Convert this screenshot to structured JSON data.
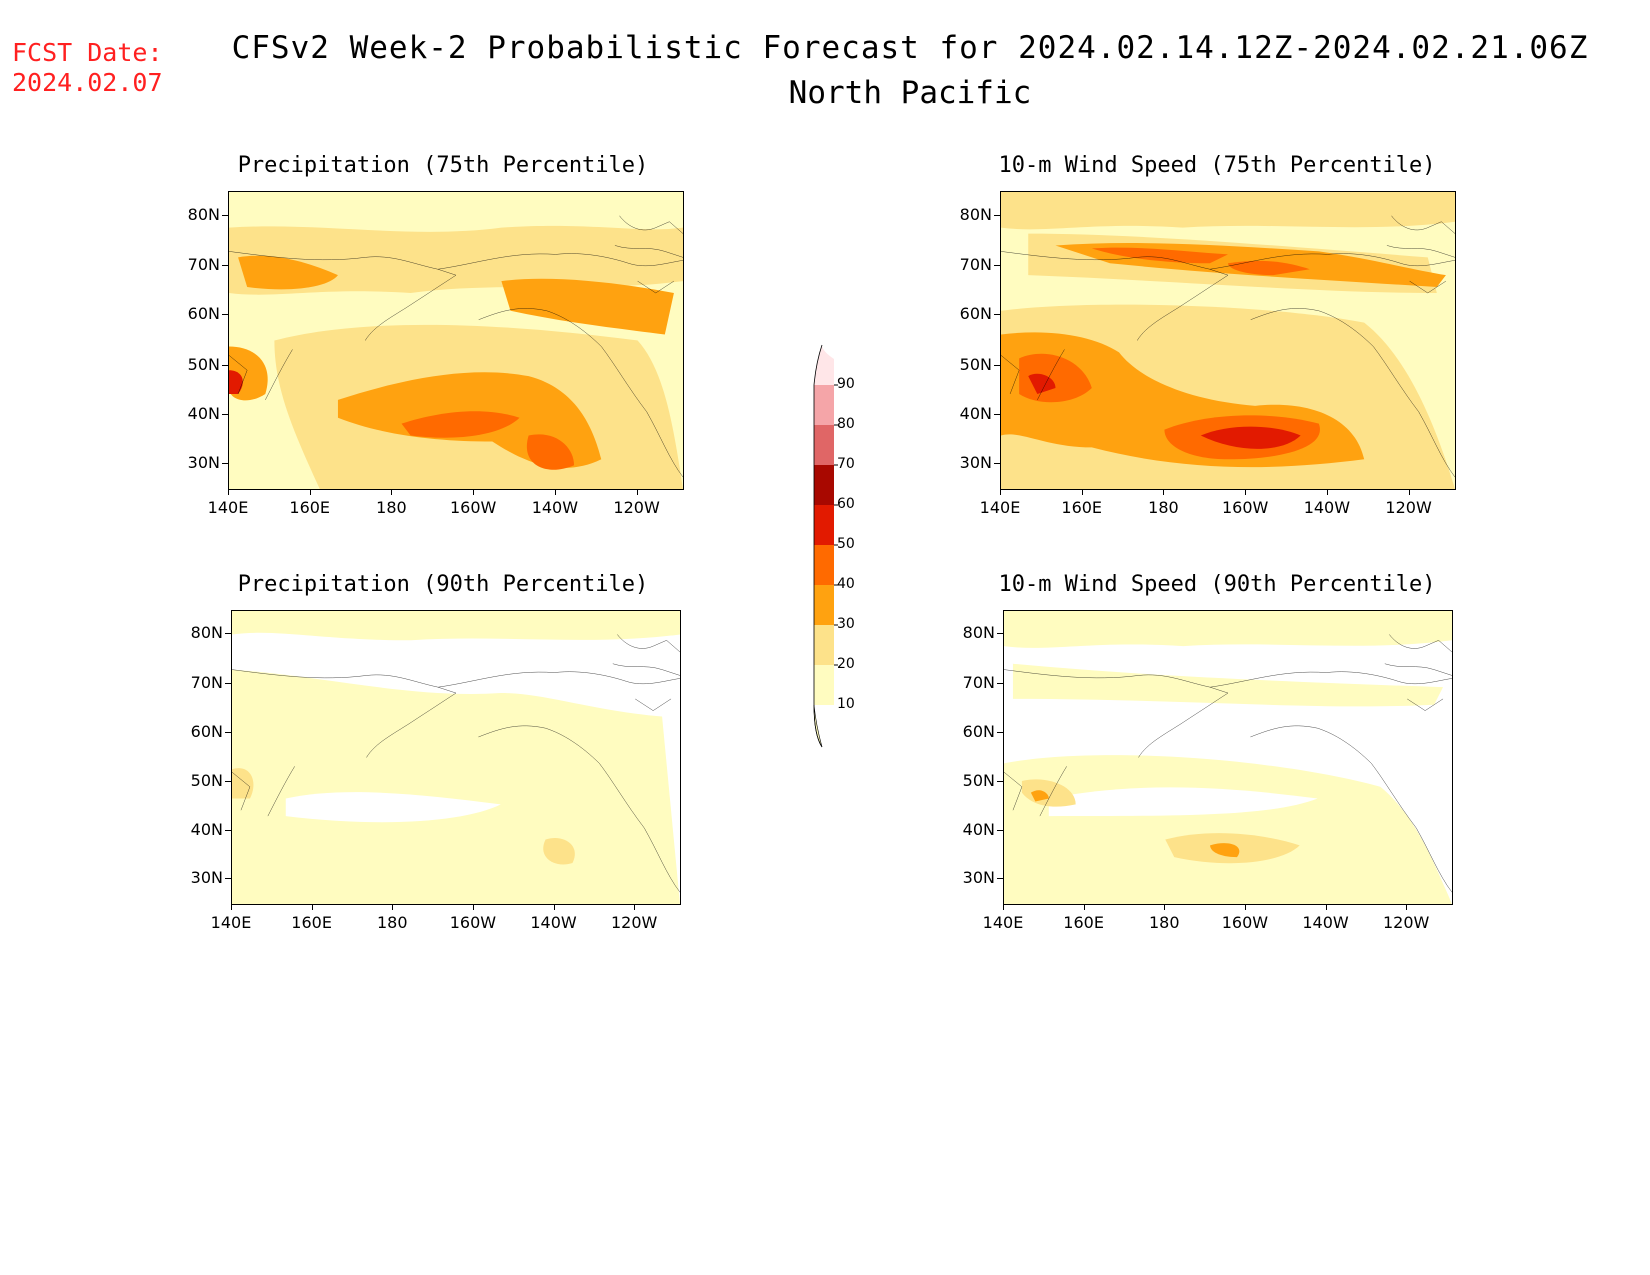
{
  "header": {
    "fcst_label": "FCST Date:",
    "fcst_date": "2024.02.07",
    "title": "CFSv2 Week-2 Probabilistic Forecast for 2024.02.14.12Z-2024.02.21.06Z",
    "subtitle": "North Pacific"
  },
  "axes": {
    "lat_labels": [
      "80N",
      "70N",
      "60N",
      "50N",
      "40N",
      "30N"
    ],
    "lon_labels": [
      "140E",
      "160E",
      "180",
      "160W",
      "140W",
      "120W"
    ]
  },
  "panels": [
    {
      "id": "precip75",
      "title": "Precipitation (75th Percentile)"
    },
    {
      "id": "wind75",
      "title": "10-m Wind Speed (75th Percentile)"
    },
    {
      "id": "precip90",
      "title": "Precipitation (90th Percentile)"
    },
    {
      "id": "wind90",
      "title": "10-m Wind Speed (90th Percentile)"
    }
  ],
  "colorbar": {
    "levels": [
      "10",
      "20",
      "30",
      "40",
      "50",
      "60",
      "70",
      "80",
      "90"
    ],
    "colors": [
      "#fffcc0",
      "#fde28a",
      "#ffa210",
      "#ff6a00",
      "#e21a00",
      "#a80800",
      "#e06666",
      "#f5a5a8",
      "#ffe6e8"
    ]
  },
  "colors": {
    "c10": "#fffcc0",
    "c20": "#fde28a",
    "c30": "#ffa210",
    "c40": "#ff6a00",
    "c50": "#e21a00"
  }
}
